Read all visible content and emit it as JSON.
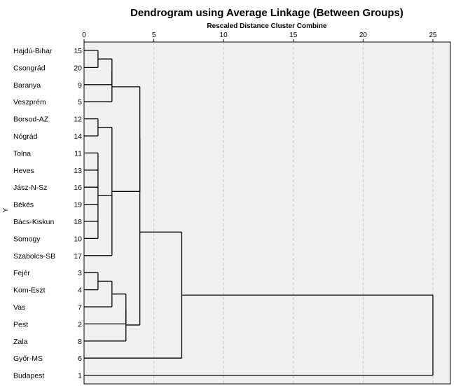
{
  "chart_data": {
    "type": "dendrogram",
    "title": "Dendrogram using Average Linkage (Between Groups)",
    "xlabel": "Rescaled Distance Cluster Combine",
    "ylabel": "Y",
    "xlim": [
      0,
      25
    ],
    "xticks": [
      0,
      5,
      10,
      15,
      20,
      25
    ],
    "grid": true,
    "leaves": [
      {
        "label": "Hajdú-Bihar",
        "id": "15"
      },
      {
        "label": "Csongrád",
        "id": "20"
      },
      {
        "label": "Baranya",
        "id": "9"
      },
      {
        "label": "Veszprém",
        "id": "5"
      },
      {
        "label": "Borsod-AZ",
        "id": "12"
      },
      {
        "label": "Nógrád",
        "id": "14"
      },
      {
        "label": "Tolna",
        "id": "11"
      },
      {
        "label": "Heves",
        "id": "13"
      },
      {
        "label": "Jász-N-Sz",
        "id": "16"
      },
      {
        "label": "Békés",
        "id": "19"
      },
      {
        "label": "Bács-Kiskun",
        "id": "18"
      },
      {
        "label": "Somogy",
        "id": "10"
      },
      {
        "label": "Szabolcs-SB",
        "id": "17"
      },
      {
        "label": "Fejér",
        "id": "3"
      },
      {
        "label": "Kom-Eszt",
        "id": "4"
      },
      {
        "label": "Vas",
        "id": "7"
      },
      {
        "label": "Pest",
        "id": "2"
      },
      {
        "label": "Zala",
        "id": "8"
      },
      {
        "label": "Győr-MS",
        "id": "6"
      },
      {
        "label": "Budapest",
        "id": "1"
      }
    ],
    "merges": [
      {
        "id": "A",
        "children": [
          "L0",
          "L1"
        ],
        "height": 1.0
      },
      {
        "id": "B",
        "children": [
          "A",
          "L2"
        ],
        "height": 2.0
      },
      {
        "id": "C",
        "children": [
          "B",
          "L3"
        ],
        "height": 2.0
      },
      {
        "id": "D",
        "children": [
          "L4",
          "L5"
        ],
        "height": 1.0
      },
      {
        "id": "E",
        "children": [
          "L6",
          "L7",
          "L8",
          "L9",
          "L10",
          "L11"
        ],
        "height": 1.0
      },
      {
        "id": "F",
        "children": [
          "D",
          "E",
          "L12"
        ],
        "height": 2.0
      },
      {
        "id": "G",
        "children": [
          "C",
          "F"
        ],
        "height": 4.0
      },
      {
        "id": "H",
        "children": [
          "L13",
          "L14"
        ],
        "height": 1.0
      },
      {
        "id": "I",
        "children": [
          "H",
          "L15"
        ],
        "height": 2.0
      },
      {
        "id": "J",
        "children": [
          "I",
          "L16"
        ],
        "height": 3.0
      },
      {
        "id": "K",
        "children": [
          "J",
          "L17"
        ],
        "height": 3.0
      },
      {
        "id": "M",
        "children": [
          "G",
          "K"
        ],
        "height": 4.0
      },
      {
        "id": "N",
        "children": [
          "M",
          "L18"
        ],
        "height": 7.0
      },
      {
        "id": "O",
        "children": [
          "N",
          "L19"
        ],
        "height": 25.0
      }
    ]
  }
}
